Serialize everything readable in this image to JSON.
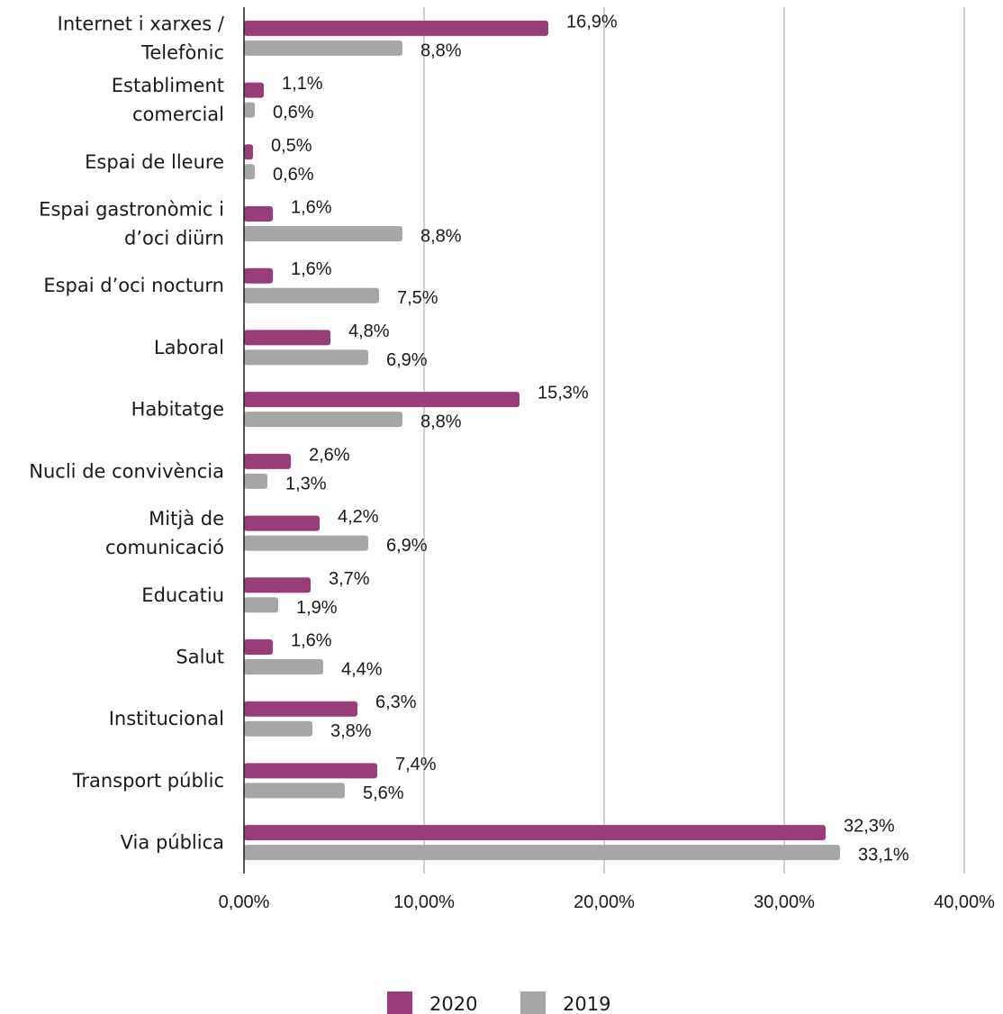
{
  "chart_data": {
    "type": "bar",
    "orientation": "horizontal",
    "categories": [
      [
        "Internet i xarxes /",
        "Telefònic"
      ],
      [
        "Establiment",
        "comercial"
      ],
      [
        "Espai de lleure"
      ],
      [
        "Espai gastronòmic i",
        "d’oci diürn"
      ],
      [
        "Espai d’oci nocturn"
      ],
      [
        "Laboral"
      ],
      [
        "Habitatge"
      ],
      [
        "Nucli de convivència"
      ],
      [
        "Mitjà de",
        "comunicació"
      ],
      [
        "Educatiu"
      ],
      [
        "Salut"
      ],
      [
        "Institucional"
      ],
      [
        "Transport públic"
      ],
      [
        "Via pública"
      ]
    ],
    "series": [
      {
        "name": "2020",
        "color": "#993d7a",
        "values": [
          16.9,
          1.1,
          0.5,
          1.6,
          1.6,
          4.8,
          15.3,
          2.6,
          4.2,
          3.7,
          1.6,
          6.3,
          7.4,
          32.3
        ],
        "labels": [
          "16,9%",
          "1,1%",
          "0,5%",
          "1,6%",
          "1,6%",
          "4,8%",
          "15,3%",
          "2,6%",
          "4,2%",
          "3,7%",
          "1,6%",
          "6,3%",
          "7,4%",
          "32,3%"
        ]
      },
      {
        "name": "2019",
        "color": "#a6a6a6",
        "values": [
          8.8,
          0.6,
          0.6,
          8.8,
          7.5,
          6.9,
          8.8,
          1.3,
          6.9,
          1.9,
          4.4,
          3.8,
          5.6,
          33.1
        ],
        "labels": [
          "8,8%",
          "0,6%",
          "0,6%",
          "8,8%",
          "7,5%",
          "6,9%",
          "8,8%",
          "1,3%",
          "6,9%",
          "1,9%",
          "4,4%",
          "3,8%",
          "5,6%",
          "33,1%"
        ]
      }
    ],
    "xlim": [
      0,
      40
    ],
    "xticks": [
      0,
      10,
      20,
      30,
      40
    ],
    "xtick_labels": [
      "0,00%",
      "10,00%",
      "20,00%",
      "30,00%",
      "40,00%"
    ],
    "grid": "vertical",
    "grid_color": "#d0d0d0",
    "legend_position": "bottom-center"
  }
}
